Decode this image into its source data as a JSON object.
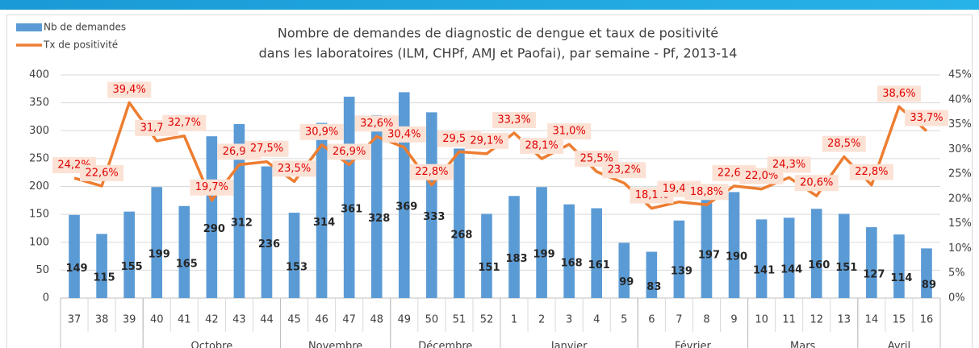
{
  "chart_data": {
    "type": "bar",
    "title": [
      "Nombre de demandes de diagnostic de dengue et taux de positivité",
      "dans les laboratoires (ILM, CHPf, AMJ et Paofai), par semaine - Pf, 2013-14"
    ],
    "categories": [
      "37",
      "38",
      "39",
      "40",
      "41",
      "42",
      "43",
      "44",
      "45",
      "46",
      "47",
      "48",
      "49",
      "50",
      "51",
      "52",
      "1",
      "2",
      "3",
      "4",
      "5",
      "6",
      "7",
      "8",
      "9",
      "10",
      "11",
      "12",
      "13",
      "14",
      "15",
      "16"
    ],
    "groups": [
      {
        "label": null,
        "span": 3
      },
      {
        "label": "Octobre",
        "span": 5
      },
      {
        "label": "Novembre",
        "span": 4
      },
      {
        "label": "Décembre",
        "span": 4
      },
      {
        "label": "Janvier",
        "span": 5
      },
      {
        "label": "Février",
        "span": 4
      },
      {
        "label": "Mars",
        "span": 4
      },
      {
        "label": "Avril",
        "span": 3
      }
    ],
    "series": [
      {
        "name": "Nb de demandes",
        "type": "bar",
        "color": "#5b9bd5",
        "values": [
          149,
          115,
          155,
          199,
          165,
          290,
          312,
          236,
          153,
          314,
          361,
          328,
          369,
          333,
          268,
          151,
          183,
          199,
          168,
          161,
          99,
          83,
          139,
          197,
          190,
          141,
          144,
          160,
          151,
          127,
          114,
          89
        ]
      },
      {
        "name": "Tx de positivité",
        "type": "line",
        "axis": "y2",
        "color": "#ed7d31",
        "values": [
          24.2,
          22.6,
          39.4,
          31.7,
          32.7,
          19.7,
          26.9,
          27.5,
          23.5,
          30.9,
          26.9,
          32.6,
          30.4,
          22.8,
          29.5,
          29.1,
          33.3,
          28.1,
          31.0,
          25.5,
          23.2,
          18.1,
          19.4,
          18.8,
          22.6,
          22.0,
          24.3,
          20.6,
          28.5,
          22.8,
          38.6,
          33.7
        ],
        "value_labels": [
          "24,2%",
          "22,6%",
          "39,4%",
          "31,7%",
          "32,7%",
          "19,7%",
          "26,9%",
          "27,5%",
          "23,5%",
          "30,9%",
          "26,9%",
          "32,6%",
          "30,4%",
          "22,8%",
          "29,5%",
          "29,1%",
          "33,3%",
          "28,1%",
          "31,0%",
          "25,5%",
          "23,2%",
          "18,1%",
          "19,4%",
          "18,8%",
          "22,6%",
          "22,0%",
          "24,3%",
          "20,6%",
          "28,5%",
          "22,8%",
          "38,6%",
          "33,7%"
        ]
      }
    ],
    "ylim": [
      0,
      400
    ],
    "yticks": [
      0,
      50,
      100,
      150,
      200,
      250,
      300,
      350,
      400
    ],
    "y2lim": [
      0,
      45
    ],
    "y2ticks": [
      {
        "value": 0,
        "label": "0%"
      },
      {
        "value": 5,
        "label": "5%"
      },
      {
        "value": 10,
        "label": "10%"
      },
      {
        "value": 15,
        "label": "15%"
      },
      {
        "value": 20,
        "label": "20%"
      },
      {
        "value": 25,
        "label": "25%"
      },
      {
        "value": 30,
        "label": "30%"
      },
      {
        "value": 35,
        "label": "35%"
      },
      {
        "value": 40,
        "label": "40%"
      },
      {
        "value": 45,
        "label": "45%"
      }
    ],
    "legend": "top-left"
  }
}
